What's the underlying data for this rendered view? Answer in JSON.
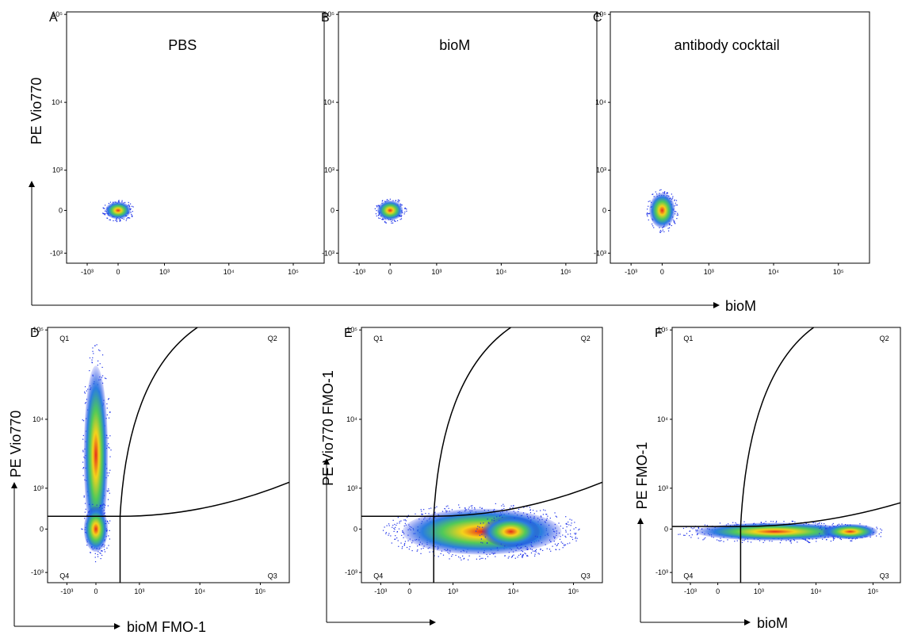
{
  "axis_ticks": {
    "x": [
      "-10³",
      "0",
      "10³",
      "10⁴",
      "10⁵"
    ],
    "y": [
      "10⁵",
      "10⁴",
      "10³",
      "0",
      "-10³"
    ]
  },
  "top_row": {
    "y_label": "PE Vio770",
    "x_label": "bioM",
    "panels": [
      {
        "letter": "A",
        "title": "PBS"
      },
      {
        "letter": "B",
        "title": "bioM"
      },
      {
        "letter": "C",
        "title": "antibody cocktail"
      }
    ]
  },
  "bottom_row": {
    "quadrants": [
      "Q1",
      "Q2",
      "Q3",
      "Q4"
    ],
    "panels": [
      {
        "letter": "D",
        "y_label": "PE Vio770",
        "x_label": "bioM FMO-1"
      },
      {
        "letter": "E",
        "y_label": "PE Vio770 FMO-1"
      },
      {
        "letter": "F",
        "y_label": "PE FMO-1",
        "x_label": "bioM"
      }
    ]
  }
}
